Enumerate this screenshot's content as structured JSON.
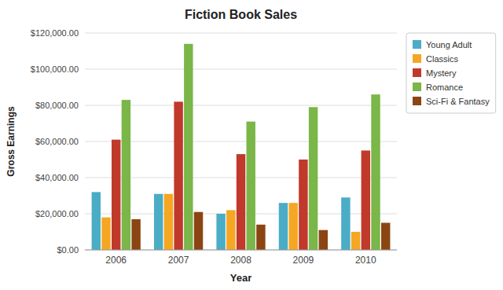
{
  "chart_data": {
    "type": "bar",
    "title": "Fiction Book Sales",
    "xlabel": "Year",
    "ylabel": "Gross Earnings",
    "categories": [
      "2006",
      "2007",
      "2008",
      "2009",
      "2010"
    ],
    "series": [
      {
        "name": "Young Adult",
        "color": "#4BACC6",
        "values": [
          32000,
          31000,
          20000,
          26000,
          29000
        ]
      },
      {
        "name": "Classics",
        "color": "#F5A623",
        "values": [
          18000,
          31000,
          22000,
          26000,
          10000
        ]
      },
      {
        "name": "Mystery",
        "color": "#C0392B",
        "values": [
          61000,
          82000,
          53000,
          50000,
          55000
        ]
      },
      {
        "name": "Romance",
        "color": "#7AB648",
        "values": [
          83000,
          114000,
          71000,
          79000,
          86000
        ]
      },
      {
        "name": "Sci-Fi & Fantasy",
        "color": "#8B4513",
        "values": [
          17000,
          21000,
          14000,
          11000,
          15000
        ]
      }
    ],
    "ylim": [
      0,
      120000
    ],
    "yticks": [
      {
        "value": 0,
        "label": "$0.00"
      },
      {
        "value": 20000,
        "label": "$20,000.00"
      },
      {
        "value": 40000,
        "label": "$40,000.00"
      },
      {
        "value": 60000,
        "label": "$60,000.00"
      },
      {
        "value": 80000,
        "label": "$80,000.00"
      },
      {
        "value": 100000,
        "label": "$100,000.00"
      },
      {
        "value": 120000,
        "label": "$120,000.00"
      }
    ],
    "grid": true,
    "legend": "right"
  }
}
